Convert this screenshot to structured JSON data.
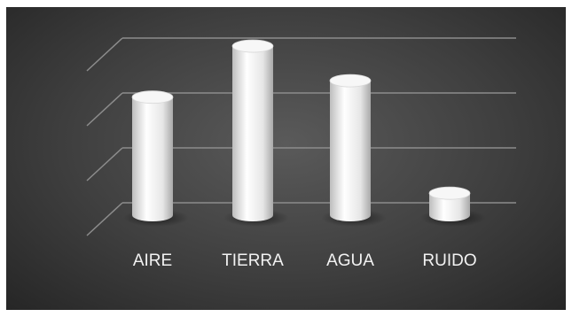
{
  "chart_data": {
    "type": "bar",
    "style": "3d-cylinder",
    "categories": [
      "AIRE",
      "TIERRA",
      "AGUA",
      "RUIDO"
    ],
    "values": [
      2.15,
      3.08,
      2.45,
      0.4
    ],
    "ylim": [
      0,
      3.5
    ],
    "grid": true,
    "legend": "none",
    "title": "",
    "xlabel": "",
    "ylabel": "",
    "colors": {
      "background": "#3f3f3f",
      "bar": "#f4f4f4",
      "grid": "#8c8c8c",
      "label": "#f2f2f2"
    }
  }
}
